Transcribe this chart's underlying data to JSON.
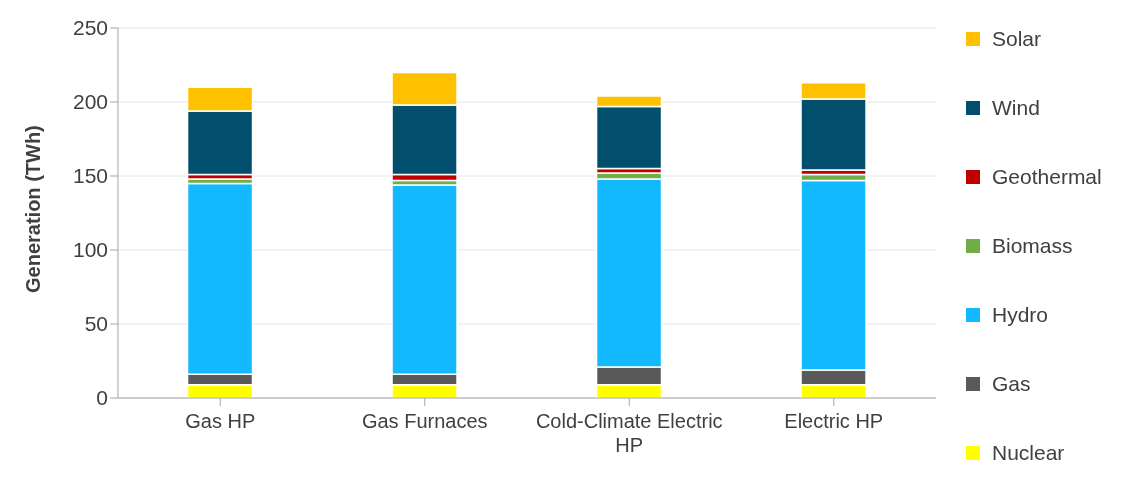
{
  "chart_data": {
    "type": "bar",
    "stacked": true,
    "ylabel": "Generation (TWh)",
    "categories": [
      "Gas HP",
      "Gas Furnaces",
      "Cold-Climate Electric HP",
      "Electric HP"
    ],
    "ylim": [
      0,
      250
    ],
    "yticks": [
      0,
      50,
      100,
      150,
      200,
      250
    ],
    "grid": "y",
    "legend": "right",
    "series": [
      {
        "name": "Nuclear",
        "color": "#ffff00",
        "values": [
          9,
          9,
          9,
          9
        ]
      },
      {
        "name": "Gas",
        "color": "#595959",
        "values": [
          7,
          7,
          12,
          10
        ]
      },
      {
        "name": "Hydro",
        "color": "#12b9ff",
        "values": [
          129,
          128,
          127,
          128
        ]
      },
      {
        "name": "Biomass",
        "color": "#70ad47",
        "values": [
          3,
          3,
          4,
          4
        ]
      },
      {
        "name": "Geothermal",
        "color": "#c00000",
        "values": [
          3,
          4,
          3,
          3
        ]
      },
      {
        "name": "Wind",
        "color": "#024f6d",
        "values": [
          43,
          47,
          42,
          48
        ]
      },
      {
        "name": "Solar",
        "color": "#ffc000",
        "values": [
          16,
          22,
          7,
          11
        ]
      }
    ]
  }
}
